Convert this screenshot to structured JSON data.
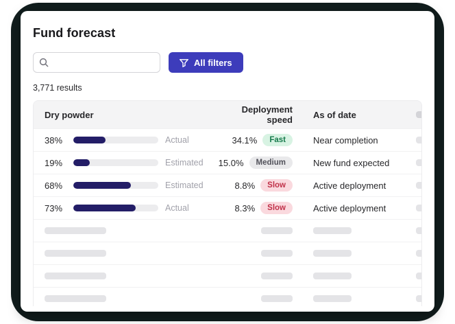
{
  "card": {
    "title": "Fund forecast",
    "search": {
      "placeholder": ""
    },
    "filters_button": {
      "label": "All filters"
    },
    "results": "3,771 results"
  },
  "table": {
    "headers": {
      "dry_powder": "Dry powder",
      "deployment_speed": "Deployment speed",
      "as_of_date": "As of date"
    },
    "rows": [
      {
        "pct_label": "38%",
        "pct": 38,
        "kind": "Actual",
        "speed": "34.1%",
        "badge": "Fast",
        "status": "Near completion"
      },
      {
        "pct_label": "19%",
        "pct": 19,
        "kind": "Estimated",
        "speed": "15.0%",
        "badge": "Medium",
        "status": "New fund expected"
      },
      {
        "pct_label": "68%",
        "pct": 68,
        "kind": "Estimated",
        "speed": "8.8%",
        "badge": "Slow",
        "status": "Active deployment"
      },
      {
        "pct_label": "73%",
        "pct": 73,
        "kind": "Actual",
        "speed": "8.3%",
        "badge": "Slow",
        "status": "Active deployment"
      }
    ],
    "skeleton_row_count": 4
  },
  "colors": {
    "accent": "#3d3cbb",
    "bar_fill": "#231d67",
    "badge_fast_bg": "#d8f3e3",
    "badge_fast_text": "#177a4c",
    "badge_medium_bg": "#e9e9eb",
    "badge_medium_text": "#52525b",
    "badge_slow_bg": "#fad9de",
    "badge_slow_text": "#c03048",
    "background_dark": "#111d1d"
  }
}
